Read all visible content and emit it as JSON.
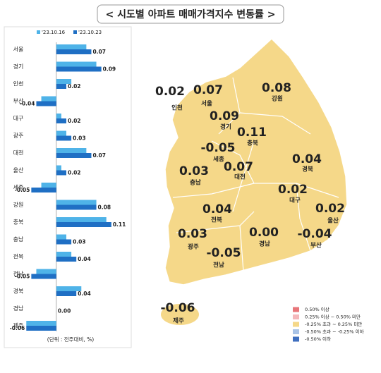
{
  "chart_data": {
    "type": "bar",
    "orientation": "horizontal",
    "title": "< 시도별 아파트 매매가격지수 변동률 >",
    "categories": [
      "서울",
      "경기",
      "인천",
      "부산",
      "대구",
      "광주",
      "대전",
      "울산",
      "세종",
      "강원",
      "충북",
      "충남",
      "전북",
      "전남",
      "경북",
      "경남",
      "제주"
    ],
    "series": [
      {
        "name": "'23.10.16",
        "color": "#4fb3e8",
        "values": [
          0.06,
          0.08,
          0.03,
          -0.03,
          0.01,
          0.02,
          0.06,
          0.01,
          -0.03,
          0.08,
          0.1,
          0.02,
          0.03,
          -0.04,
          0.05,
          0.0,
          -0.06
        ]
      },
      {
        "name": "'23.10.23",
        "color": "#1f6fc4",
        "values": [
          0.07,
          0.09,
          0.02,
          -0.04,
          0.02,
          0.03,
          0.07,
          0.02,
          -0.05,
          0.08,
          0.11,
          0.03,
          0.04,
          -0.05,
          0.04,
          0.0,
          -0.06
        ],
        "value_labels": [
          "0.07",
          "0.09",
          "0.02",
          "-0.04",
          "0.02",
          "0.03",
          "0.07",
          "0.02",
          "-0.05",
          "0.08",
          "0.11",
          "0.03",
          "0.04",
          "-0.05",
          "0.04",
          "0.00",
          "-0.06"
        ]
      }
    ],
    "xlim": [
      -0.09,
      0.13
    ],
    "unit_note": "(단위 : 전주대비, %)"
  },
  "map_legend": [
    {
      "label": "0.50% 이상",
      "color": "#e8767a"
    },
    {
      "label": "0.25% 이상 ~ 0.50% 미만",
      "color": "#f4b8bb"
    },
    {
      "label": "-0.25% 초과 ~ 0.25% 미만",
      "color": "#f5d889"
    },
    {
      "label": "-0.50% 초과 ~ -0.25% 이하",
      "color": "#a9c3e6"
    },
    {
      "label": "-0.50% 이하",
      "color": "#3f6fbf"
    }
  ]
}
